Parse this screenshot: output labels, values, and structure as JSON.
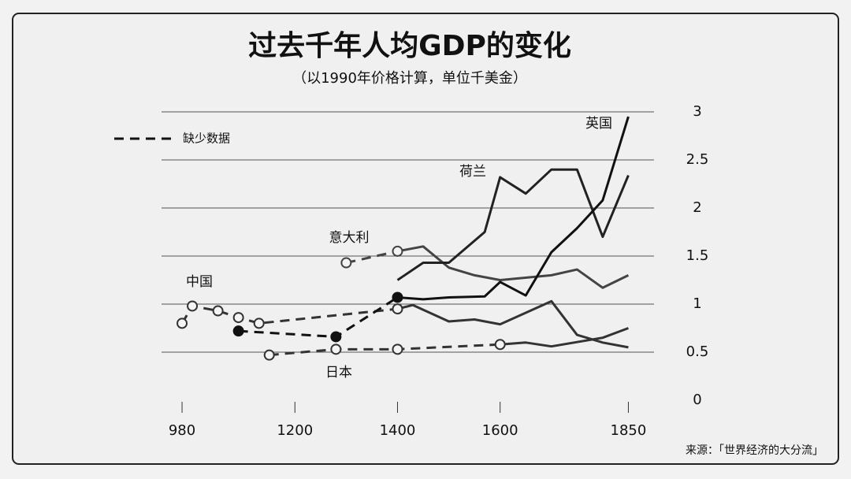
{
  "chart_data": {
    "type": "line",
    "title": "过去千年人均GDP的变化",
    "subtitle": "（以1990年价格计算，单位千美金）",
    "legend_label": "缺少数据",
    "source": "来源：「世界经济的大分流」",
    "xlim": [
      940,
      1900
    ],
    "xticks": [
      980,
      1200,
      1400,
      1600,
      1850
    ],
    "ylim": [
      0,
      3
    ],
    "yticks": [
      0,
      0.5,
      1,
      1.5,
      2,
      2.5,
      3
    ],
    "grid": true,
    "series": [
      {
        "name": "中国",
        "color": "#333333",
        "marker": "open",
        "dashed_to": 1400,
        "x": [
          980,
          1000,
          1050,
          1090,
          1130,
          1400,
          1430,
          1500,
          1550,
          1600,
          1700,
          1750,
          1800,
          1850
        ],
        "values": [
          0.8,
          0.98,
          0.93,
          0.86,
          0.8,
          0.95,
          0.99,
          0.82,
          0.84,
          0.79,
          1.03,
          0.68,
          0.6,
          0.55
        ]
      },
      {
        "name": "意大利",
        "color": "#444444",
        "marker": "open",
        "dashed_to": 1400,
        "x": [
          1300,
          1400,
          1450,
          1500,
          1550,
          1600,
          1700,
          1750,
          1800,
          1850
        ],
        "values": [
          1.43,
          1.55,
          1.6,
          1.38,
          1.3,
          1.25,
          1.3,
          1.36,
          1.17,
          1.3
        ]
      },
      {
        "name": "荷兰",
        "color": "#222222",
        "marker": "none",
        "dashed_to": 1400,
        "x": [
          1400,
          1450,
          1500,
          1570,
          1600,
          1650,
          1700,
          1750,
          1800,
          1850
        ],
        "values": [
          1.25,
          1.43,
          1.43,
          1.75,
          2.32,
          2.15,
          2.4,
          2.4,
          1.7,
          2.34
        ]
      },
      {
        "name": "英国",
        "color": "#111111",
        "marker": "filled",
        "dashed_to": 1400,
        "x": [
          1090,
          1280,
          1400,
          1450,
          1500,
          1570,
          1600,
          1650,
          1700,
          1750,
          1800,
          1850
        ],
        "values": [
          0.72,
          0.66,
          1.07,
          1.05,
          1.07,
          1.08,
          1.23,
          1.09,
          1.54,
          1.79,
          2.08,
          2.95
        ]
      },
      {
        "name": "日本",
        "color": "#333333",
        "marker": "open",
        "dashed_to": 1600,
        "x": [
          1150,
          1280,
          1400,
          1600,
          1650,
          1700,
          1800,
          1850
        ],
        "values": [
          0.47,
          0.53,
          0.53,
          0.58,
          0.6,
          0.56,
          0.65,
          0.75
        ]
      }
    ]
  }
}
